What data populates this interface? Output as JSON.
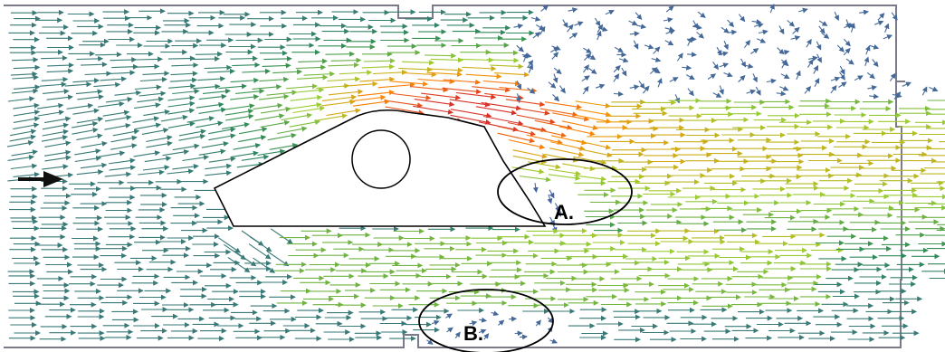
{
  "diagram": {
    "annotations": [
      {
        "id": "A",
        "label": "A."
      },
      {
        "id": "B",
        "label": "B."
      }
    ],
    "colors": {
      "slow_flow": "#4a5fa8",
      "medium_flow": "#2e8b57",
      "fast_flow": "#9acd32",
      "fastest_flow": "#ff8c00",
      "peak_flow": "#d73027",
      "wall": "#7a7a8a",
      "outline": "#000000"
    },
    "icons": {
      "inflow": "inflow-arrow-icon",
      "vectors": "velocity-vector-arrow"
    }
  }
}
